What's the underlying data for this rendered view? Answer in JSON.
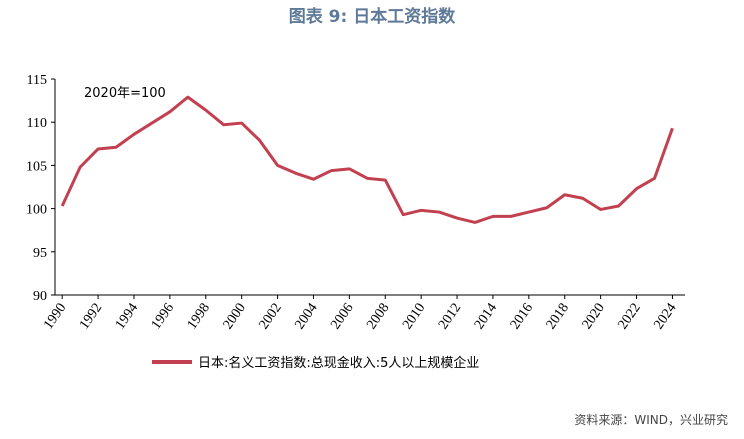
{
  "chart_data": {
    "type": "line",
    "title": "图表 9:  日本工资指数",
    "annotation": "2020年=100",
    "source": "资料来源：WIND，兴业研究",
    "x": [
      1990,
      1991,
      1992,
      1993,
      1994,
      1995,
      1996,
      1997,
      1998,
      1999,
      2000,
      2001,
      2002,
      2003,
      2004,
      2005,
      2006,
      2007,
      2008,
      2009,
      2010,
      2011,
      2012,
      2013,
      2014,
      2015,
      2016,
      2017,
      2018,
      2019,
      2020,
      2021,
      2022,
      2023,
      2024
    ],
    "series": [
      {
        "name": "日本:名义工资指数:总现金收入:5人以上规模企业",
        "color": "#c2404f",
        "values": [
          100.3,
          104.8,
          106.9,
          107.1,
          108.6,
          109.9,
          111.2,
          112.9,
          111.4,
          109.7,
          109.9,
          107.9,
          105.0,
          104.1,
          103.4,
          104.4,
          104.6,
          103.5,
          103.3,
          99.3,
          99.8,
          99.6,
          98.9,
          98.4,
          99.1,
          99.1,
          99.6,
          100.1,
          101.6,
          101.2,
          99.9,
          100.3,
          102.3,
          103.5,
          109.3
        ]
      }
    ],
    "xlim": [
      1989.6,
      2024.7
    ],
    "xticks": [
      1990,
      1992,
      1994,
      1996,
      1998,
      2000,
      2002,
      2004,
      2006,
      2008,
      2010,
      2012,
      2014,
      2016,
      2018,
      2020,
      2022,
      2024
    ],
    "ylim": [
      90,
      115
    ],
    "yticks": [
      90,
      95,
      100,
      105,
      110,
      115
    ],
    "grid": false
  }
}
